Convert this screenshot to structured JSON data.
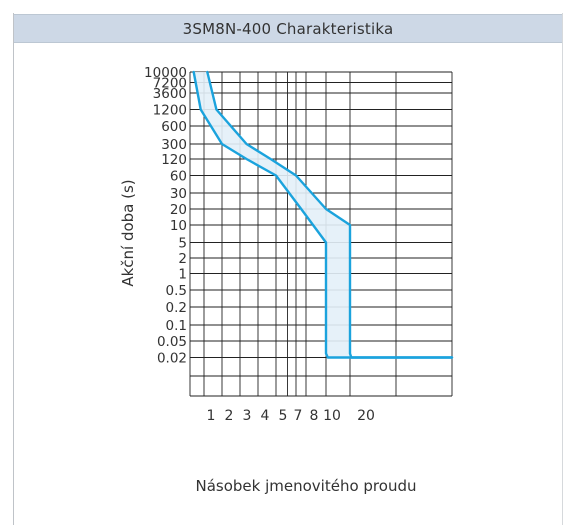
{
  "chart_data": {
    "type": "line",
    "title": "3SM8N-400 Charakteristika",
    "ylabel": "Akční doba (s)",
    "xlabel": "Násobek jmenovitého proudu",
    "y_ticks": [
      "10000",
      "7200",
      "3600",
      "1200",
      "600",
      "300",
      "120",
      "60",
      "30",
      "20",
      "10",
      "5",
      "2",
      "1",
      "0.5",
      "0.2",
      "0.1",
      "0.05",
      "0.02"
    ],
    "x_ticks": [
      "1",
      "2",
      "3",
      "4",
      "5",
      "7",
      "8",
      "10",
      "20"
    ],
    "series": [
      {
        "values": [
          {
            "x": 1.05,
            "y": 10000
          },
          {
            "x": 1.15,
            "y": 1200
          },
          {
            "x": 1.5,
            "y": 300
          },
          {
            "x": 2.2,
            "y": 120
          },
          {
            "x": 3.5,
            "y": 60
          },
          {
            "x": 5.5,
            "y": 20
          },
          {
            "x": 8,
            "y": 5
          },
          {
            "x": 8,
            "y": 0.025
          },
          {
            "x": 8.3,
            "y": 0.02
          },
          {
            "x": 80,
            "y": 0.02
          }
        ]
      },
      {
        "values": [
          {
            "x": 1.25,
            "y": 10000
          },
          {
            "x": 1.4,
            "y": 1200
          },
          {
            "x": 2.2,
            "y": 300
          },
          {
            "x": 3.2,
            "y": 120
          },
          {
            "x": 5,
            "y": 60
          },
          {
            "x": 8,
            "y": 20
          },
          {
            "x": 13,
            "y": 10
          },
          {
            "x": 13,
            "y": 0.025
          },
          {
            "x": 13.3,
            "y": 0.02
          },
          {
            "x": 80,
            "y": 0.02
          }
        ]
      }
    ],
    "grid": true,
    "colors": {
      "curve": "#1ba3dd",
      "band_fill": "#e3eff8",
      "grid": "#222222",
      "title_bar": "#cdd8e6"
    }
  }
}
